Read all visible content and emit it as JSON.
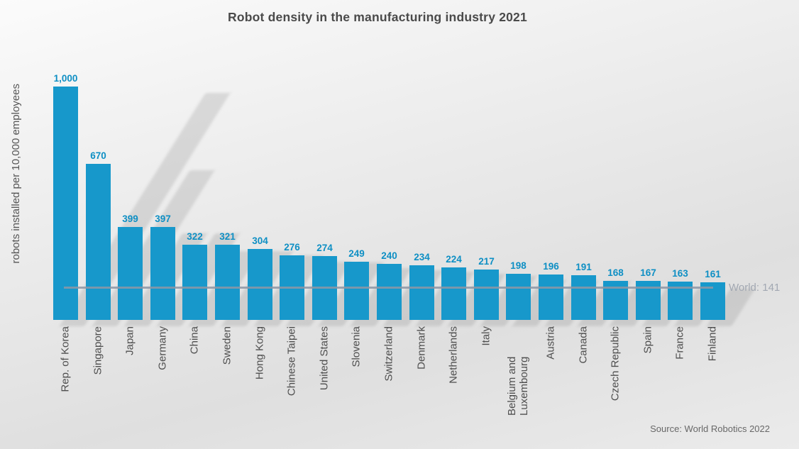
{
  "chart_data": {
    "type": "bar",
    "title": "Robot density in the manufacturing industry 2021",
    "ylabel": "robots installed per 10,000 employees",
    "xlabel": "",
    "categories": [
      "Rep. of Korea",
      "Singapore",
      "Japan",
      "Germany",
      "China",
      "Sweden",
      "Hong Kong",
      "Chinese Taipei",
      "United States",
      "Slovenia",
      "Switzerland",
      "Denmark",
      "Netherlands",
      "Italy",
      "Belgium and Luxembourg",
      "Austria",
      "Canada",
      "Czech Republic",
      "Spain",
      "France",
      "Finland"
    ],
    "values": [
      1000,
      670,
      399,
      397,
      322,
      321,
      304,
      276,
      274,
      249,
      240,
      234,
      224,
      217,
      198,
      196,
      191,
      168,
      167,
      163,
      161
    ],
    "value_labels": [
      "1,000",
      "670",
      "399",
      "397",
      "322",
      "321",
      "304",
      "276",
      "274",
      "249",
      "240",
      "234",
      "224",
      "217",
      "198",
      "196",
      "191",
      "168",
      "167",
      "163",
      "161"
    ],
    "reference_line": {
      "label": "World: 141",
      "value": 141
    },
    "ylim": [
      0,
      1000
    ],
    "grid": false,
    "legend": "none",
    "bar_color": "#1798cb",
    "value_label_color": "#0e8fc4",
    "category_label_color": "#4e4e4e",
    "reference_line_color": "#8d96a6",
    "reference_label_color": "#a2a8b2",
    "title_color": "#4a4a4a"
  },
  "source": "Source: World Robotics 2022"
}
